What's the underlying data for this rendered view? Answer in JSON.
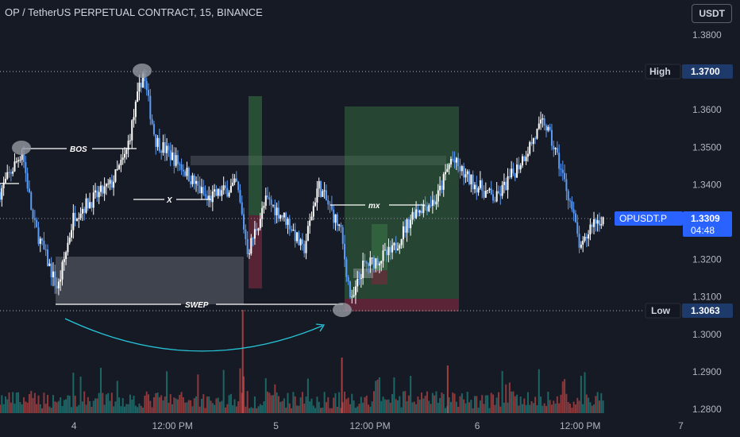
{
  "header": {
    "title": "OP / TetherUS PERPETUAL CONTRACT, 15, BINANCE",
    "currency": "USDT"
  },
  "chart_data": {
    "type": "candlestick",
    "ylim": [
      1.2775,
      1.385
    ],
    "y_ticks": [
      1.38,
      1.36,
      1.35,
      1.34,
      1.32,
      1.31,
      1.3,
      1.29,
      1.28
    ],
    "y_tick_labels": [
      "1.3800",
      "1.3600",
      "1.3500",
      "1.3400",
      "1.3200",
      "1.3100",
      "1.3000",
      "1.2900",
      "1.2800"
    ],
    "x_ticks": [
      {
        "label": "4",
        "pos": 0.1
      },
      {
        "label": "12:00 PM",
        "pos": 0.233
      },
      {
        "label": "5",
        "pos": 0.373
      },
      {
        "label": "12:00 PM",
        "pos": 0.5
      },
      {
        "label": "6",
        "pos": 0.645
      },
      {
        "label": "12:00 PM",
        "pos": 0.784
      },
      {
        "label": "7",
        "pos": 0.92
      }
    ],
    "levels": {
      "high": {
        "label": "High",
        "value": 1.37,
        "value_label": "1.3700"
      },
      "low": {
        "label": "Low",
        "value": 1.3063,
        "value_label": "1.3063"
      },
      "last": {
        "label": "OPUSDT.P",
        "value": 1.3309,
        "value_label": "1.3309",
        "countdown": "04:48"
      }
    },
    "annotations": [
      "BOS",
      "X",
      "SWEP",
      "mx"
    ],
    "key_points": [
      [
        0.0,
        1.338
      ],
      [
        0.03,
        1.349
      ],
      [
        0.045,
        1.33
      ],
      [
        0.078,
        1.312
      ],
      [
        0.1,
        1.332
      ],
      [
        0.15,
        1.34
      ],
      [
        0.17,
        1.348
      ],
      [
        0.193,
        1.37
      ],
      [
        0.21,
        1.352
      ],
      [
        0.245,
        1.345
      ],
      [
        0.28,
        1.336
      ],
      [
        0.32,
        1.34
      ],
      [
        0.335,
        1.322
      ],
      [
        0.36,
        1.336
      ],
      [
        0.39,
        1.33
      ],
      [
        0.41,
        1.322
      ],
      [
        0.43,
        1.34
      ],
      [
        0.46,
        1.328
      ],
      [
        0.475,
        1.308
      ],
      [
        0.49,
        1.318
      ],
      [
        0.53,
        1.322
      ],
      [
        0.56,
        1.333
      ],
      [
        0.59,
        1.336
      ],
      [
        0.61,
        1.347
      ],
      [
        0.63,
        1.342
      ],
      [
        0.67,
        1.336
      ],
      [
        0.7,
        1.345
      ],
      [
        0.735,
        1.357
      ],
      [
        0.752,
        1.348
      ],
      [
        0.77,
        1.336
      ],
      [
        0.785,
        1.322
      ],
      [
        0.8,
        1.33
      ],
      [
        0.815,
        1.331
      ]
    ],
    "colors": {
      "up": "#ffffff",
      "down": "#5b9cf6",
      "background": "#161a25",
      "grid_dots": "#b2b5be",
      "high_low_box": "#1e3a6a",
      "last_price": "#2962ff",
      "arc": "#26c6da"
    }
  }
}
